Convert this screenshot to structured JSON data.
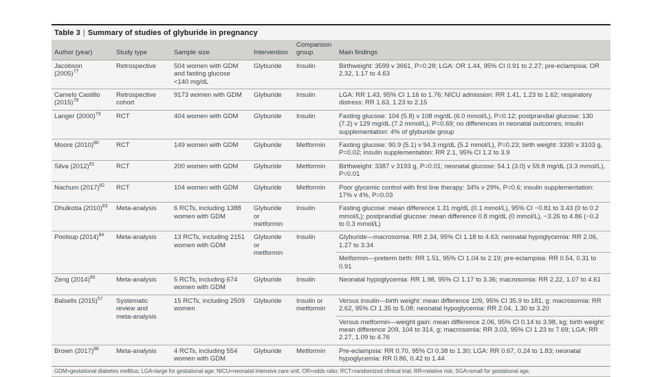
{
  "table": {
    "title_prefix": "Table 3",
    "title": "Summary of studies of glyburide in pregnancy",
    "columns": [
      "Author (year)",
      "Study type",
      "Sample size",
      "Intervention",
      "Comparison group",
      "Main findings"
    ],
    "rows": [
      {
        "author": "Jacobson (2005)",
        "ref": "77",
        "study_type": "Retrospective",
        "sample_size": "504 women with GDM and fasting glucose <140 mg/dL",
        "intervention": "Glyburide",
        "comparison": "Insulin",
        "findings": [
          "Birthweight: 3599 v 3661, P=0.28; LGA: OR 1.44, 95% CI 0.91 to 2.27; pre-eclampsia: OR 2.32, 1.17 to 4.63"
        ]
      },
      {
        "author": "Camelo Castillo (2015)",
        "ref": "78",
        "study_type": "Retrospective cohort",
        "sample_size": "9173 women with GDM",
        "intervention": "Glyburide",
        "comparison": "Insulin",
        "findings": [
          "LGA: RR 1.43, 95% CI 1.16 to 1.76; NICU admission: RR 1.41, 1.23 to 1.62; respiratory distress: RR 1.63, 1.23 to 2.15"
        ]
      },
      {
        "author": "Langer (2000)",
        "ref": "79",
        "study_type": "RCT",
        "sample_size": "404 women with GDM",
        "intervention": "Glyburide",
        "comparison": "Insulin",
        "findings": [
          "Fasting glucose: 104 (5.8) v 108 mg/dL (6.0 mmol/L), P=0.12; postprandial glucose: 130 (7.2) v 129 mg/dL (7.2 mmol/L), P=0.69; no differences in neonatal outcomes; insulin supplementation: 4% of glyburide group"
        ]
      },
      {
        "author": "Moore (2010)",
        "ref": "80",
        "study_type": "RCT",
        "sample_size": "149 women with GDM",
        "intervention": "Glyburide",
        "comparison": "Metformin",
        "findings": [
          "Fasting glucose: 90.9 (5.1) v 94.3 mg/dL (5.2 mmol/L), P=0.23; birth weight: 3330 v 3103 g, P=0.02; insulin supplementation: RR 2.1, 95% CI 1.2 to 3.9"
        ]
      },
      {
        "author": "Silva (2012)",
        "ref": "81",
        "study_type": "RCT",
        "sample_size": "200 women with GDM",
        "intervention": "Glyburide",
        "comparison": "Metformin",
        "findings": [
          "Birthweight: 3387 v 3193 g, P=0.01; neonatal glucose: 54.1 (3.0) v 59.8 mg/dL (3.3 mmol/L), P=0.01"
        ]
      },
      {
        "author": "Nachum (2017)",
        "ref": "82",
        "study_type": "RCT",
        "sample_size": "104 women with GDM",
        "intervention": "Glyburide",
        "comparison": "Metformin",
        "findings": [
          "Poor glycemic control with first line therapy: 34% v 29%, P=0.6; insulin supplementation: 17% v 4%, P=0.03"
        ]
      },
      {
        "author": "Dhulkotia (2010)",
        "ref": "83",
        "study_type": "Meta-analysis",
        "sample_size": "6 RCTs, including 1388 women with GDM",
        "intervention": "Glyburide or metformin",
        "comparison": "Insulin",
        "findings": [
          "Fasting glucose: mean difference 1.31 mg/dL (0.1 mmol/L), 95% CI −0.81 to 3.43 (0 to 0.2 mmol/L); postprandial glucose: mean difference 0.8 mg/dL (0 mmol/L), −3.26 to 4.86 (−0.2 to 0.3 mmol/L)"
        ]
      },
      {
        "author": "Poolsup (2014)",
        "ref": "84",
        "study_type": "Meta-analysis",
        "sample_size": "13 RCTs, including 2151 women with GDM",
        "intervention": "Glyburide or metformin",
        "comparison": "Insulin",
        "findings": [
          "Glyburide—macrosomia: RR 2.34, 95% CI 1.18 to 4.63; neonatal hypoglycemia: RR 2.06, 1.27 to 3.34",
          "Metformin—preterm birth: RR 1.51, 95% CI 1.04 to 2.19; pre-eclampsia: RR 0.54, 0.31 to 0.91"
        ]
      },
      {
        "author": "Zeng (2014)",
        "ref": "85",
        "study_type": "Meta-analysis",
        "sample_size": "5 RCTs, including 674 women with GDM",
        "intervention": "Glyburide",
        "comparison": "Insulin",
        "findings": [
          "Neonatal hypoglycemia: RR 1.98, 95% CI 1.17 to 3.36; macrosomia: RR 2.22, 1.07 to 4.61"
        ]
      },
      {
        "author": "Balsells (2015)",
        "ref": "57",
        "study_type": "Systematic review and meta-analysis",
        "sample_size": "15 RCTs, including 2509 women",
        "intervention": "Glyburide",
        "comparison": "Insulin or metformin",
        "findings": [
          "Versus insulin—birth weight: mean difference 109, 95% CI 35.9 to 181, g; macrosomia: RR 2.62, 95% CI 1.35 to 5.08; neonatal hypoglycemia: RR 2.04, 1.30 to 3.20",
          "Versus metformin—weight gain: mean difference 2.06, 95% CI 0.14 to 3.98, kg; birth weight: mean difference 209, 104 to 314, g; macrosomia: RR 3.03, 95% CI 1.23 to 7.69; LGA: RR 2.27, 1.09 to 4.76"
        ]
      },
      {
        "author": "Brown (2017)",
        "ref": "86",
        "study_type": "Meta-analysis",
        "sample_size": "4 RCTs, including 554 women with GDM",
        "intervention": "Glyburide",
        "comparison": "Metformin",
        "findings": [
          "Pre-eclampsia: RR 0.70, 95% CI 0.38 to 1.30; LGA: RR 0.67, 0.24 to 1.83; neonatal hypoglycemia: RR 0.86, 0.42 to 1.44"
        ]
      }
    ],
    "footnote": "GDM=gestational diabetes mellitus; LGA=large for gestational age; NICU=neonatal intensive care unit; OR=odds ratio; RCT=randomized clinical trial; RR=relative risk; SGA=small for gestational age."
  }
}
